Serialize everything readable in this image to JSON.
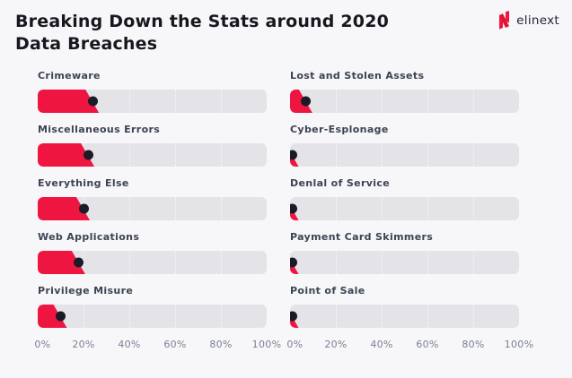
{
  "header": {
    "title": "Breaking Down the Stats around 2020 Data Breaches",
    "logo_text": "elinext"
  },
  "colors": {
    "background": "#f7f7f9",
    "track": "#e4e4e8",
    "accent_red": "#ef1541",
    "dot": "#1b1b27",
    "title_text": "#17171f",
    "label_text": "#3d4354",
    "axis_text": "#7b8194",
    "logo_text": "#23233b"
  },
  "chart_data": {
    "type": "bar",
    "orientation": "horizontal",
    "title": "Breaking Down the Stats around 2020 Data Breaches",
    "unit": "%",
    "xlim": [
      0,
      100
    ],
    "x_ticks": [
      "0%",
      "20%",
      "40%",
      "60%",
      "80%",
      "100%"
    ],
    "grid": true,
    "legend": "none",
    "columns": [
      {
        "items": [
          {
            "label": "Crimeware",
            "value": 24
          },
          {
            "label": "Miscellaneous Errors",
            "value": 22
          },
          {
            "label": "Everything Else",
            "value": 20
          },
          {
            "label": "Web Applications",
            "value": 18
          },
          {
            "label": "Privilege Misure",
            "value": 10
          }
        ]
      },
      {
        "items": [
          {
            "label": "Lost and Stolen Assets",
            "value": 7
          },
          {
            "label": "Cyber-Esplonage",
            "value": 1
          },
          {
            "label": "Denlal of Service",
            "value": 1
          },
          {
            "label": "Payment Card Skimmers",
            "value": 1
          },
          {
            "label": "Point of Sale",
            "value": 1
          }
        ]
      }
    ]
  }
}
